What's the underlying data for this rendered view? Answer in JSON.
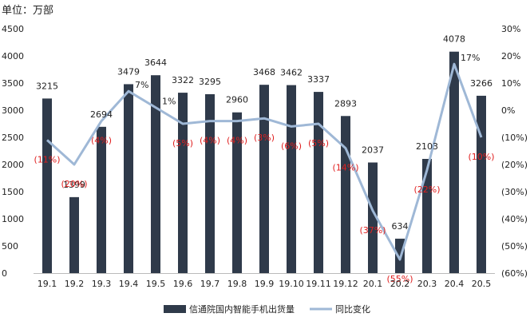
{
  "unit_label": "单位：万部",
  "chart_data": {
    "type": "bar",
    "categories": [
      "19.1",
      "19.2",
      "19.3",
      "19.4",
      "19.5",
      "19.6",
      "19.7",
      "19.8",
      "19.9",
      "19.10",
      "19.11",
      "19.12",
      "20.1",
      "20.2",
      "20.3",
      "20.4",
      "20.5"
    ],
    "series": [
      {
        "name": "信通院国内智能手机出货量",
        "type": "bar",
        "axis": "left",
        "values": [
          3215,
          1399,
          2694,
          3479,
          3644,
          3322,
          3295,
          2960,
          3468,
          3462,
          3337,
          2893,
          2037,
          634,
          2103,
          4078,
          3266
        ],
        "labels": [
          "3215",
          "1399",
          "2694",
          "3479",
          "3644",
          "3322",
          "3295",
          "2960",
          "3468",
          "3462",
          "3337",
          "2893",
          "2037",
          "634",
          "2103",
          "4078",
          "3266"
        ],
        "color": "#2f3a4a"
      },
      {
        "name": "同比变化",
        "type": "line",
        "axis": "right",
        "values": [
          -11,
          -20,
          -4,
          7,
          1,
          -5,
          -4,
          -4,
          -3,
          -6,
          -5,
          -14,
          -37,
          -55,
          -22,
          17,
          -10
        ],
        "labels": [
          "(11%)",
          "(20%)",
          "(4%)",
          "7%",
          "1%",
          "(5%)",
          "(4%)",
          "(4%)",
          "(3%)",
          "(6%)",
          "(5%)",
          "(14%)",
          "(37%)",
          "(55%)",
          "(22%)",
          "17%",
          "(10%)"
        ],
        "color": "#9fb8d6"
      }
    ],
    "y_left": {
      "range": [
        0,
        4500
      ],
      "ticks": [
        "0",
        "500",
        "1000",
        "1500",
        "2000",
        "2500",
        "3000",
        "3500",
        "4000",
        "4500"
      ]
    },
    "y_right": {
      "range": [
        -60,
        30
      ],
      "ticks": [
        "(60%)",
        "(50%)",
        "(40%)",
        "(30%)",
        "(20%)",
        "(10%)",
        "0%",
        "10%",
        "20%",
        "30%"
      ]
    },
    "grid": false,
    "legend_position": "bottom",
    "colors": {
      "negative_label": "#e02020",
      "positive_label": "#222222"
    }
  }
}
